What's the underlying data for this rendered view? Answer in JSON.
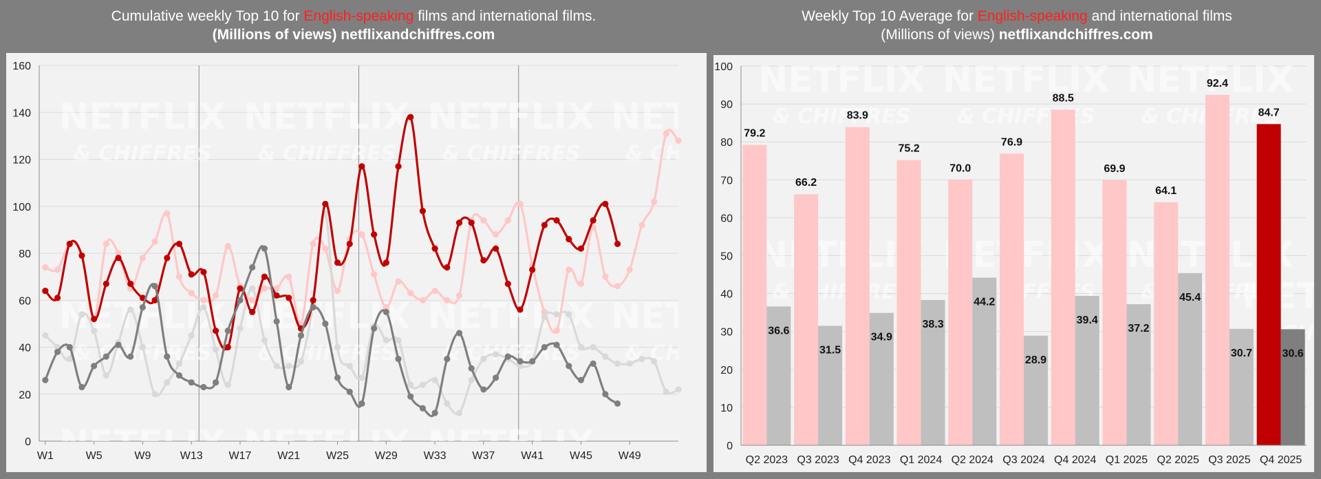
{
  "left_title": {
    "prefix": "Cumulative weekly Top 10 for ",
    "highlight": "English-speaking",
    "suffix": " films and international films.",
    "line2": "(Millions of views) netflixandchiffres.com"
  },
  "right_title": {
    "prefix": "Weekly Top 10 Average for ",
    "highlight": "English-speaking",
    "suffix": " and international films",
    "line2a": "(Millions of views) ",
    "line2b": "netflixandchiffres.com"
  },
  "watermark": {
    "line1": "NETFLIX",
    "line2": "& CHIFFRES"
  },
  "colors": {
    "english_current": "#c00000",
    "english_previous": "#ffc7c7",
    "international_current": "#7f7f7f",
    "international_previous": "#d9d9d9",
    "highlight": "#ff1f1f"
  },
  "chart_data": [
    {
      "type": "line",
      "title": "Cumulative weekly Top 10 for English-speaking films and international films.",
      "subtitle": "(Millions of views) netflixandchiffres.com",
      "ylim": [
        0,
        160
      ],
      "yticks": [
        0,
        20,
        40,
        60,
        80,
        100,
        120,
        140,
        160
      ],
      "x_tick_labels": [
        "W1",
        "W5",
        "W9",
        "W13",
        "W17",
        "W21",
        "W25",
        "W29",
        "W33",
        "W37",
        "W41",
        "W45",
        "W49"
      ],
      "weeks": 53,
      "grid": true,
      "series": [
        {
          "color": "#ffc7c7",
          "values": [
            74,
            73,
            84,
            79,
            52,
            84,
            80,
            65,
            78,
            85,
            97,
            70,
            63,
            60,
            62,
            83,
            66,
            60,
            65,
            65,
            70,
            50,
            84,
            82,
            64,
            86,
            88,
            71,
            57,
            68,
            63,
            60,
            64,
            60,
            62,
            94,
            94,
            88,
            94,
            101,
            75,
            55,
            47,
            73,
            67,
            91,
            70,
            66,
            73,
            92,
            102,
            131,
            128,
            122
          ]
        },
        {
          "color": "#d9d9d9",
          "values": [
            45,
            40,
            35,
            54,
            47,
            28,
            42,
            56,
            40,
            20,
            25,
            33,
            45,
            57,
            39,
            24,
            48,
            65,
            43,
            32,
            32,
            34,
            58,
            97,
            40,
            32,
            27,
            49,
            43,
            43,
            24,
            24,
            26,
            16,
            12,
            26,
            35,
            37,
            35,
            32,
            34,
            53,
            54,
            54,
            40,
            40,
            36,
            33,
            33,
            35,
            34,
            21,
            22
          ]
        },
        {
          "color": "#c00000",
          "values": [
            64,
            61,
            84,
            79,
            52,
            67,
            78,
            67,
            61,
            60,
            78,
            84,
            71,
            72,
            47,
            40,
            65,
            55,
            70,
            62,
            61,
            48,
            60,
            101,
            76,
            84,
            117,
            88,
            76,
            117,
            138,
            98,
            82,
            74,
            93,
            93,
            77,
            82,
            67,
            56,
            73,
            92,
            94,
            86,
            82,
            94,
            101,
            84
          ]
        },
        {
          "color": "#7f7f7f",
          "values": [
            26,
            38,
            40,
            23,
            32,
            36,
            41,
            36,
            57,
            66,
            36,
            28,
            25,
            23,
            25,
            47,
            60,
            74,
            82,
            51,
            23,
            45,
            57,
            50,
            27,
            21,
            16,
            48,
            55,
            35,
            19,
            14,
            12,
            35,
            46,
            31,
            22,
            27,
            36,
            34,
            34,
            40,
            41,
            32,
            26,
            33,
            20,
            16
          ]
        }
      ]
    },
    {
      "type": "bar",
      "title": "Weekly Top 10 Average for English-speaking and international films",
      "subtitle": "(Millions of views) netflixandchiffres.com",
      "ylim": [
        0,
        100
      ],
      "yticks": [
        0,
        10,
        20,
        30,
        40,
        50,
        60,
        70,
        80,
        90,
        100
      ],
      "categories": [
        "Q2 2023",
        "Q3 2023",
        "Q4 2023",
        "Q1 2024",
        "Q2 2024",
        "Q3 2024",
        "Q4 2024",
        "Q1 2025",
        "Q2 2025",
        "Q3 2025",
        "Q4 2025"
      ],
      "series": [
        {
          "values": [
            79.2,
            66.2,
            83.9,
            75.2,
            70.0,
            76.9,
            88.5,
            69.9,
            64.1,
            92.4,
            84.7
          ],
          "labels": [
            "79.2",
            "66.2",
            "83.9",
            "75.2",
            "70.0",
            "76.9",
            "88.5",
            "69.9",
            "64.1",
            "92.4",
            "84.7"
          ],
          "color": "#ffc7c7",
          "current_color": "#c00000",
          "current_label_color": "#c00000"
        },
        {
          "values": [
            36.6,
            31.5,
            34.9,
            38.3,
            44.2,
            28.9,
            39.4,
            37.2,
            45.4,
            30.7,
            30.6
          ],
          "labels": [
            "36.6",
            "31.5",
            "34.9",
            "38.3",
            "44.2",
            "28.9",
            "39.4",
            "37.2",
            "45.4",
            "30.7",
            "30.6"
          ],
          "color": "#bfbfbf",
          "current_color": "#7f7f7f",
          "current_label_color": "#ffffff"
        }
      ]
    }
  ]
}
